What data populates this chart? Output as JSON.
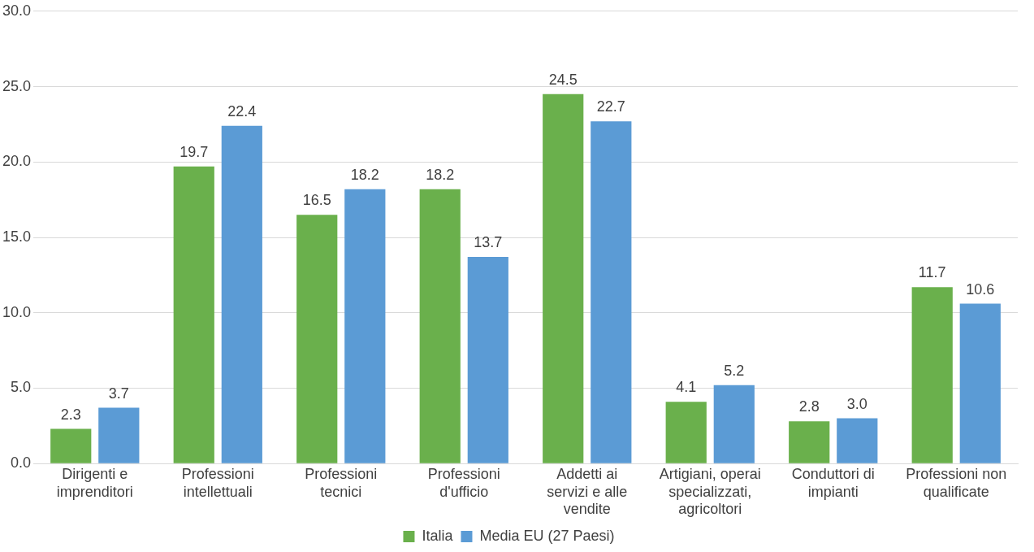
{
  "chart_data": {
    "type": "bar",
    "categories": [
      "Dirigenti e imprenditori",
      "Professioni intellettuali",
      "Professioni tecnici",
      "Professioni d'ufficio",
      "Addetti ai servizi e alle vendite",
      "Artigiani, operai specializzati, agricoltori",
      "Conduttori di impianti",
      "Professioni non qualificate"
    ],
    "series": [
      {
        "name": "Italia",
        "color": "#6ab04c",
        "values": [
          2.3,
          19.7,
          16.5,
          18.2,
          24.5,
          4.1,
          2.8,
          11.7
        ],
        "value_labels": [
          "2.3",
          "19.7",
          "16.5",
          "18.2",
          "24.5",
          "4.1",
          "2.8",
          "11.7"
        ]
      },
      {
        "name": "Media EU (27 Paesi)",
        "color": "#5b9bd5",
        "values": [
          3.7,
          22.4,
          18.2,
          13.7,
          22.7,
          5.2,
          3.0,
          10.6
        ],
        "value_labels": [
          "3.7",
          "22.4",
          "18.2",
          "13.7",
          "22.7",
          "5.2",
          "3.0",
          "10.6"
        ]
      }
    ],
    "ylim": [
      0,
      30
    ],
    "yticks": [
      {
        "value": 0,
        "label": "0.0"
      },
      {
        "value": 5,
        "label": "5.0"
      },
      {
        "value": 10,
        "label": "10.0"
      },
      {
        "value": 15,
        "label": "15.0"
      },
      {
        "value": 20,
        "label": "20.0"
      },
      {
        "value": 25,
        "label": "25.0"
      },
      {
        "value": 30,
        "label": "30.0"
      }
    ],
    "grid": "y",
    "legend": "bottom"
  }
}
